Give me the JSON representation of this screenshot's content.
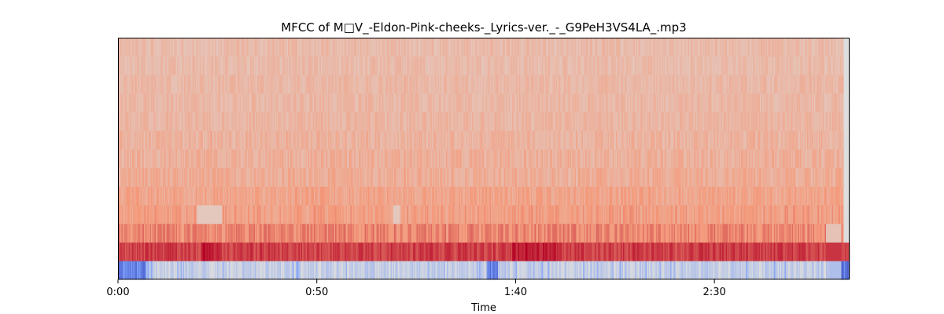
{
  "chart_data": {
    "type": "heatmap",
    "title": "MFCC of M□V_-Eldon-Pink-cheeks-_Lyrics-ver._-_G9PeH3VS4LA_.mp3",
    "xlabel": "Time",
    "ylabel": "",
    "x_ticks": [
      {
        "seconds": 0,
        "label": "0:00"
      },
      {
        "seconds": 50,
        "label": "0:50"
      },
      {
        "seconds": 100,
        "label": "1:40"
      },
      {
        "seconds": 150,
        "label": "2:30"
      }
    ],
    "xlim": [
      0,
      184
    ],
    "n_coefficients": 13,
    "colormap": "coolwarm",
    "colors": {
      "low": "#3b4cc0",
      "mid": "#dddddd",
      "high": "#b40426"
    },
    "notes_visible": {
      "coef0": "mostly pale blue/grey with dark blue bursts at start (0:00-0:07), around 1:33-1:35, and at the end (~3:02)",
      "coef1": "strong red band, darkest around 0:22-0:26, 1:00, and 1:42-1:50",
      "higher_coefs": "mostly light salmon/peach with vertical striations"
    }
  }
}
